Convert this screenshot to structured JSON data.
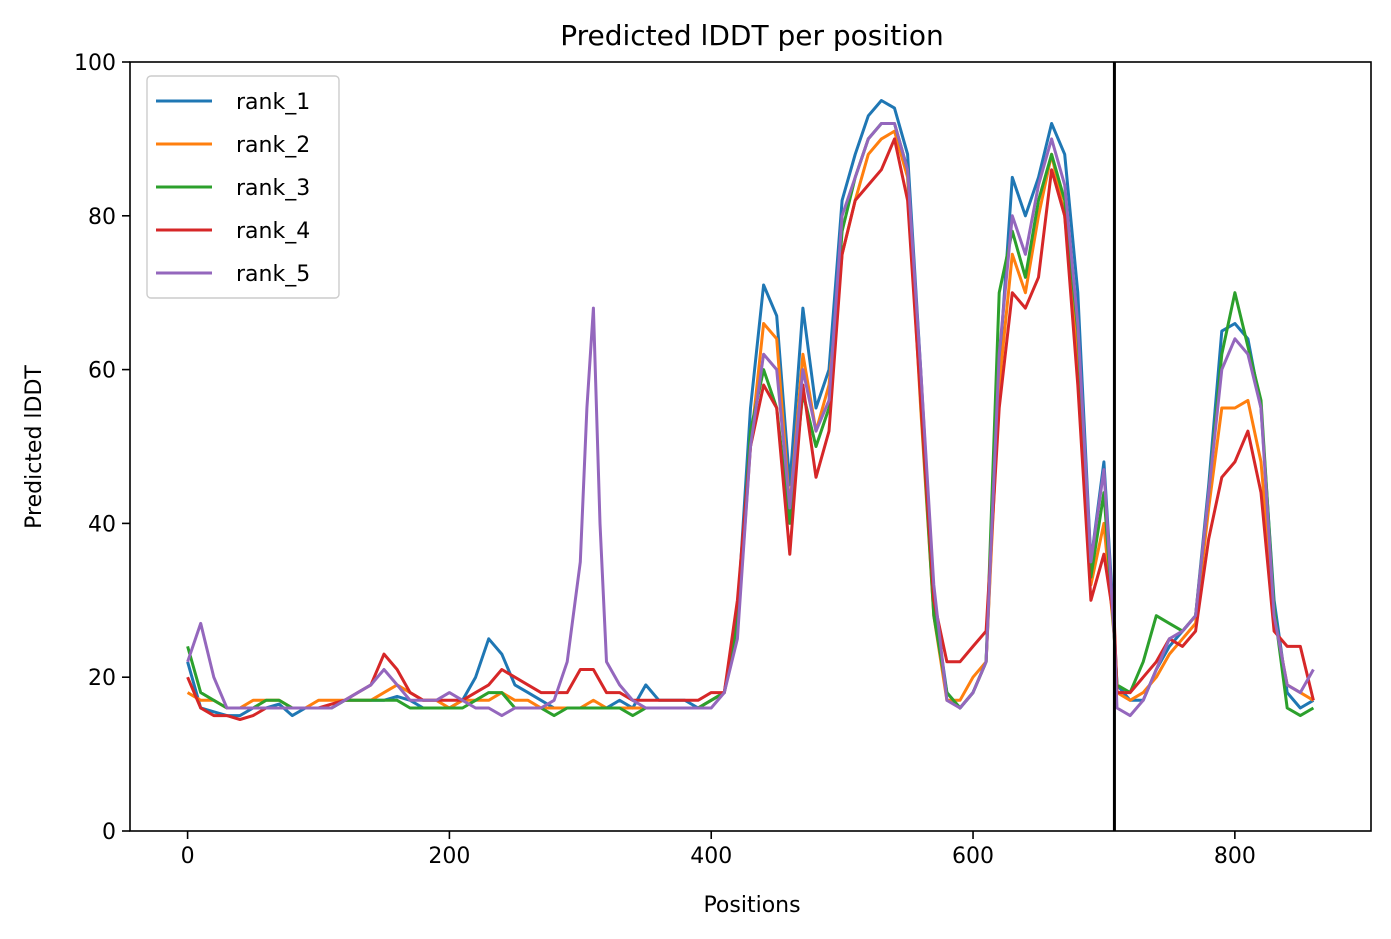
{
  "chart_data": {
    "type": "line",
    "title": "Predicted lDDT per position",
    "xlabel": "Positions",
    "ylabel": "Predicted lDDT",
    "xlim": [
      -44,
      904
    ],
    "ylim": [
      0,
      100
    ],
    "xticks": [
      0,
      200,
      400,
      600,
      800
    ],
    "yticks": [
      0,
      20,
      40,
      60,
      80,
      100
    ],
    "grid": false,
    "legend_position": "top-left",
    "vertical_line_x": 708,
    "series": [
      {
        "name": "rank_1",
        "color": "#1f77b4",
        "x": [
          0,
          10,
          20,
          30,
          40,
          50,
          60,
          70,
          80,
          90,
          100,
          110,
          120,
          130,
          140,
          150,
          160,
          170,
          180,
          190,
          200,
          210,
          220,
          230,
          240,
          250,
          260,
          270,
          280,
          290,
          300,
          310,
          320,
          330,
          340,
          350,
          360,
          370,
          380,
          390,
          400,
          410,
          420,
          430,
          440,
          450,
          460,
          470,
          480,
          490,
          500,
          510,
          520,
          530,
          540,
          550,
          560,
          570,
          580,
          590,
          600,
          610,
          620,
          630,
          640,
          650,
          660,
          670,
          680,
          690,
          700,
          708,
          710,
          720,
          730,
          740,
          750,
          760,
          770,
          780,
          790,
          800,
          810,
          820,
          830,
          840,
          850,
          860
        ],
        "y": [
          22,
          16,
          15.5,
          15,
          15,
          16,
          16,
          16.5,
          15,
          16,
          16,
          16,
          17,
          17,
          17,
          17,
          17.5,
          17,
          16,
          16,
          16,
          17,
          20,
          25,
          23,
          19,
          18,
          17,
          16,
          16,
          16,
          16,
          16,
          17,
          16,
          19,
          17,
          17,
          17,
          16,
          17,
          18,
          28,
          55,
          71,
          67,
          45,
          68,
          55,
          60,
          82,
          88,
          93,
          95,
          94,
          88,
          60,
          30,
          18,
          16,
          18,
          22,
          60,
          85,
          80,
          85,
          92,
          88,
          70,
          35,
          48,
          26,
          19,
          17,
          17,
          21,
          24,
          26,
          28,
          45,
          65,
          66,
          64,
          55,
          30,
          18,
          16,
          17
        ]
      },
      {
        "name": "rank_2",
        "color": "#ff7f0e",
        "x": [
          0,
          10,
          20,
          30,
          40,
          50,
          60,
          70,
          80,
          90,
          100,
          110,
          120,
          130,
          140,
          150,
          160,
          170,
          180,
          190,
          200,
          210,
          220,
          230,
          240,
          250,
          260,
          270,
          280,
          290,
          300,
          310,
          320,
          330,
          340,
          350,
          360,
          370,
          380,
          390,
          400,
          410,
          420,
          430,
          440,
          450,
          460,
          470,
          480,
          490,
          500,
          510,
          520,
          530,
          540,
          550,
          560,
          570,
          580,
          590,
          600,
          610,
          620,
          630,
          640,
          650,
          660,
          670,
          680,
          690,
          700,
          708,
          710,
          720,
          730,
          740,
          750,
          760,
          770,
          780,
          790,
          800,
          810,
          820,
          830,
          840,
          850,
          860
        ],
        "y": [
          18,
          17,
          17,
          16,
          16,
          17,
          17,
          17,
          16,
          16,
          17,
          17,
          17,
          17,
          17,
          18,
          19,
          18,
          17,
          17,
          16,
          17,
          17,
          17,
          18,
          17,
          17,
          16,
          16,
          16,
          16,
          17,
          16,
          16,
          16,
          16,
          16,
          16,
          16,
          16,
          17,
          18,
          26,
          50,
          66,
          64,
          42,
          62,
          52,
          58,
          75,
          82,
          88,
          90,
          91,
          85,
          55,
          28,
          17,
          17,
          20,
          22,
          58,
          75,
          70,
          80,
          88,
          80,
          62,
          32,
          40,
          25,
          18,
          17,
          18,
          20,
          23,
          25,
          27,
          42,
          55,
          55,
          56,
          48,
          28,
          19,
          18,
          17
        ]
      },
      {
        "name": "rank_3",
        "color": "#2ca02c",
        "x": [
          0,
          10,
          20,
          30,
          40,
          50,
          60,
          70,
          80,
          90,
          100,
          110,
          120,
          130,
          140,
          150,
          160,
          170,
          180,
          190,
          200,
          210,
          220,
          230,
          240,
          250,
          260,
          270,
          280,
          290,
          300,
          310,
          320,
          330,
          340,
          350,
          360,
          370,
          380,
          390,
          400,
          410,
          420,
          430,
          440,
          450,
          460,
          470,
          480,
          490,
          500,
          510,
          520,
          530,
          540,
          550,
          560,
          570,
          580,
          590,
          600,
          610,
          620,
          630,
          640,
          650,
          660,
          670,
          680,
          690,
          700,
          708,
          710,
          720,
          730,
          740,
          750,
          760,
          770,
          780,
          790,
          800,
          810,
          820,
          830,
          840,
          850,
          860
        ],
        "y": [
          24,
          18,
          17,
          16,
          16,
          16,
          17,
          17,
          16,
          16,
          16,
          16,
          17,
          17,
          17,
          17,
          17,
          16,
          16,
          16,
          16,
          16,
          17,
          18,
          18,
          16,
          16,
          16,
          15,
          16,
          16,
          16,
          16,
          16,
          15,
          16,
          16,
          16,
          16,
          16,
          17,
          18,
          27,
          52,
          60,
          55,
          40,
          57,
          50,
          55,
          78,
          85,
          90,
          92,
          92,
          86,
          56,
          28,
          18,
          16,
          18,
          22,
          70,
          78,
          72,
          82,
          88,
          82,
          65,
          33,
          44,
          25,
          19,
          18,
          22,
          28,
          27,
          26,
          28,
          44,
          62,
          70,
          63,
          56,
          29,
          16,
          15,
          16
        ]
      },
      {
        "name": "rank_4",
        "color": "#d62728",
        "x": [
          0,
          10,
          20,
          30,
          40,
          50,
          60,
          70,
          80,
          90,
          100,
          110,
          120,
          130,
          140,
          150,
          160,
          170,
          180,
          190,
          200,
          210,
          220,
          230,
          240,
          250,
          260,
          270,
          280,
          290,
          300,
          310,
          320,
          330,
          340,
          350,
          360,
          370,
          380,
          390,
          400,
          410,
          420,
          430,
          440,
          450,
          460,
          470,
          480,
          490,
          500,
          510,
          520,
          530,
          540,
          550,
          560,
          570,
          580,
          590,
          600,
          610,
          620,
          630,
          640,
          650,
          660,
          670,
          680,
          690,
          700,
          708,
          710,
          720,
          730,
          740,
          750,
          760,
          770,
          780,
          790,
          800,
          810,
          820,
          830,
          840,
          850,
          860
        ],
        "y": [
          20,
          16,
          15,
          15,
          14.5,
          15,
          16,
          16,
          16,
          16,
          16,
          16.5,
          17,
          18,
          19,
          23,
          21,
          18,
          17,
          17,
          17,
          17,
          18,
          19,
          21,
          20,
          19,
          18,
          18,
          18,
          21,
          21,
          18,
          18,
          17,
          17,
          17,
          17,
          17,
          17,
          18,
          18,
          30,
          50,
          58,
          55,
          36,
          58,
          46,
          52,
          75,
          82,
          84,
          86,
          90,
          82,
          56,
          30,
          22,
          22,
          24,
          26,
          55,
          70,
          68,
          72,
          86,
          80,
          58,
          30,
          36,
          27,
          18,
          18,
          20,
          22,
          25,
          24,
          26,
          38,
          46,
          48,
          52,
          44,
          26,
          24,
          24,
          17
        ]
      },
      {
        "name": "rank_5",
        "color": "#9467bd",
        "x": [
          0,
          10,
          20,
          30,
          40,
          50,
          60,
          70,
          80,
          90,
          100,
          110,
          120,
          130,
          140,
          150,
          160,
          170,
          180,
          190,
          200,
          210,
          220,
          230,
          240,
          250,
          260,
          270,
          280,
          290,
          300,
          305,
          310,
          315,
          320,
          330,
          340,
          350,
          360,
          370,
          380,
          390,
          400,
          410,
          420,
          430,
          440,
          450,
          460,
          470,
          480,
          490,
          500,
          510,
          520,
          530,
          540,
          550,
          560,
          570,
          580,
          590,
          600,
          610,
          620,
          630,
          640,
          650,
          660,
          670,
          680,
          690,
          700,
          708,
          710,
          720,
          730,
          740,
          750,
          760,
          770,
          780,
          790,
          800,
          810,
          820,
          830,
          840,
          850,
          860
        ],
        "y": [
          22,
          27,
          20,
          16,
          16,
          16,
          16,
          16,
          16,
          16,
          16,
          16,
          17,
          18,
          19,
          21,
          19,
          17,
          17,
          17,
          18,
          17,
          16,
          16,
          15,
          16,
          16,
          16,
          17,
          22,
          35,
          55,
          68,
          40,
          22,
          19,
          17,
          16,
          16,
          16,
          16,
          16,
          16,
          18,
          25,
          50,
          62,
          60,
          42,
          60,
          52,
          56,
          80,
          85,
          90,
          92,
          92,
          86,
          60,
          32,
          17,
          16,
          18,
          22,
          62,
          80,
          75,
          84,
          90,
          84,
          66,
          35,
          47,
          25,
          16,
          15,
          17,
          21,
          25,
          26,
          28,
          44,
          60,
          64,
          62,
          55,
          28,
          19,
          18,
          21
        ]
      }
    ]
  }
}
